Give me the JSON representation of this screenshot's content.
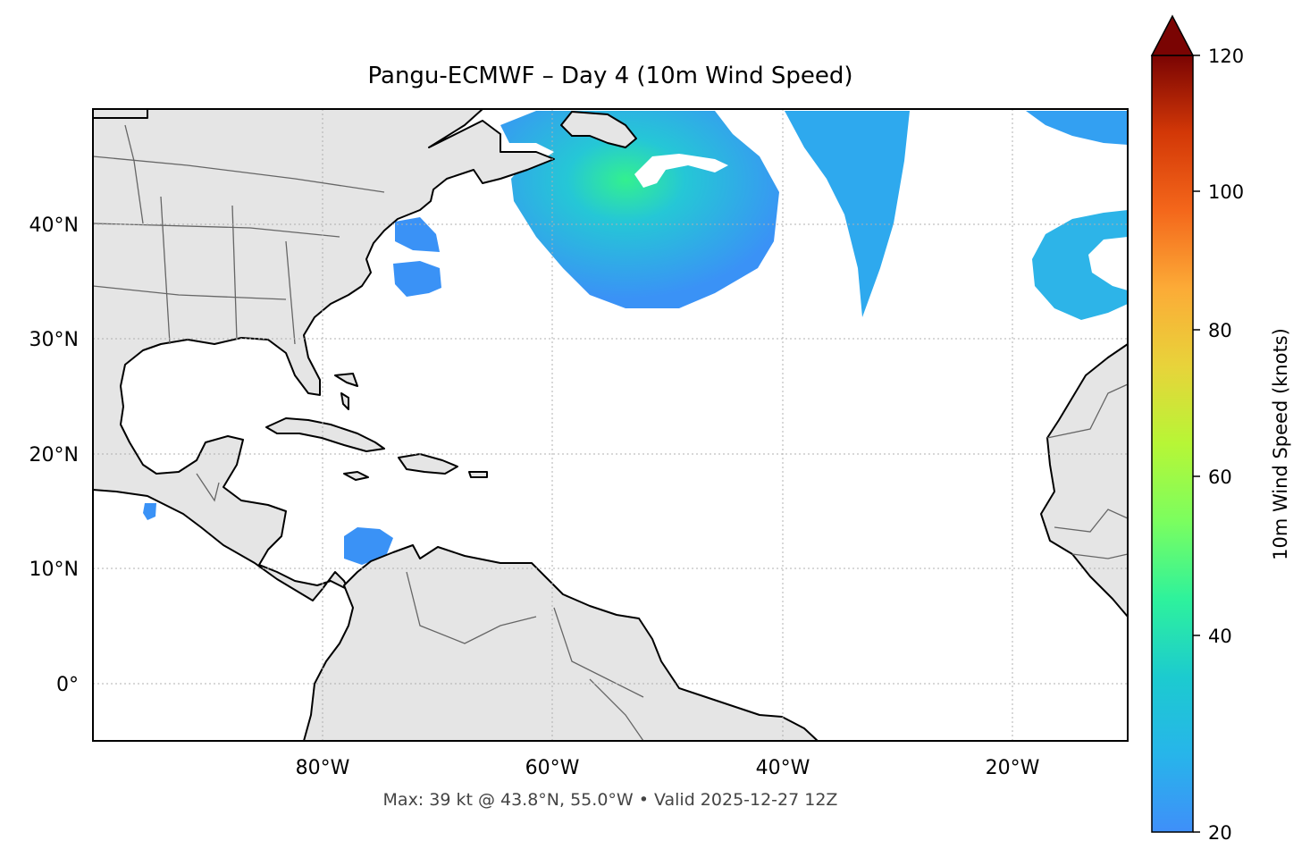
{
  "title": "Pangu-ECMWF – Day 4 (10m Wind Speed)",
  "subtitle": "Max: 39 kt @ 43.8°N, 55.0°W • Valid 2025-12-27 12Z",
  "map": {
    "lon_range": [
      -100,
      -10
    ],
    "lat_range": [
      -5,
      50
    ],
    "gridlines": "dotted",
    "x_ticks": [
      {
        "value": -80,
        "label": "80°W"
      },
      {
        "value": -60,
        "label": "60°W"
      },
      {
        "value": -40,
        "label": "40°W"
      },
      {
        "value": -20,
        "label": "20°W"
      }
    ],
    "y_ticks": [
      {
        "value": 40,
        "label": "40°N"
      },
      {
        "value": 30,
        "label": "30°N"
      },
      {
        "value": 20,
        "label": "20°N"
      },
      {
        "value": 10,
        "label": "10°N"
      },
      {
        "value": 0,
        "label": "0°"
      }
    ],
    "land_color": "#e5e5e5",
    "ocean_color": "#ffffff",
    "coastline_color": "#000000",
    "border_color": "#666666"
  },
  "colorbar": {
    "label": "10m Wind Speed (knots)",
    "range": [
      20,
      120
    ],
    "extend": "max",
    "ticks": [
      {
        "value": 20,
        "label": "20"
      },
      {
        "value": 40,
        "label": "40"
      },
      {
        "value": 60,
        "label": "60"
      },
      {
        "value": 80,
        "label": "80"
      },
      {
        "value": 100,
        "label": "100"
      },
      {
        "value": 120,
        "label": "120"
      }
    ],
    "colormap": "turbo",
    "extend_color": "#7a0403"
  },
  "max_point": {
    "value_kt": 39,
    "lat": 43.8,
    "lon": -55.0
  }
}
